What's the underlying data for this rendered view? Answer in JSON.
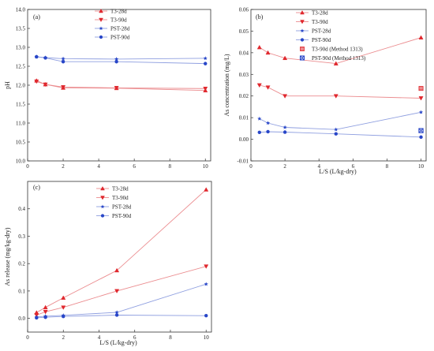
{
  "chart_data": [
    {
      "type": "line",
      "panel_label": "(a)",
      "xlabel": "",
      "ylabel": "pH",
      "xlim": [
        0,
        10.3
      ],
      "ylim": [
        10.0,
        14.0
      ],
      "yticks": [
        "10.0",
        "10.5",
        "11.0",
        "11.5",
        "12.0",
        "12.5",
        "13.0",
        "13.5",
        "14.0"
      ],
      "xticks": [
        "0",
        "2",
        "4",
        "6",
        "8",
        "10"
      ],
      "legend_position": "top-right",
      "series": [
        {
          "name": "T3-28d",
          "color": "#e0282e",
          "marker": "triangle",
          "x": [
            0.5,
            1,
            2,
            5,
            10
          ],
          "y": [
            12.12,
            12.02,
            11.93,
            11.92,
            11.86
          ]
        },
        {
          "name": "T3-90d",
          "color": "#e0282e",
          "marker": "triangle-down",
          "x": [
            0.5,
            1,
            2,
            5,
            10
          ],
          "y": [
            12.1,
            12.02,
            11.95,
            11.93,
            11.91
          ]
        },
        {
          "name": "PST-28d",
          "color": "#2846c8",
          "marker": "star",
          "x": [
            0.5,
            1,
            2,
            5,
            10
          ],
          "y": [
            12.75,
            12.73,
            12.7,
            12.69,
            12.71
          ]
        },
        {
          "name": "PST-90d",
          "color": "#2846c8",
          "marker": "circle",
          "x": [
            0.5,
            1,
            2,
            5,
            10
          ],
          "y": [
            12.75,
            12.72,
            12.62,
            12.62,
            12.57
          ]
        }
      ]
    },
    {
      "type": "line",
      "panel_label": "(b)",
      "xlabel": "L/S (L/kg-dry)",
      "ylabel": "As concentration (mg/L)",
      "xlim": [
        0,
        10.3
      ],
      "ylim": [
        -0.01,
        0.06
      ],
      "yticks": [
        "-0.01",
        "0.00",
        "0.01",
        "0.02",
        "0.03",
        "0.04",
        "0.05",
        "0.06"
      ],
      "xticks": [
        "0",
        "2",
        "4",
        "6",
        "8",
        "10"
      ],
      "legend_position": "top-right",
      "series": [
        {
          "name": "T3-28d",
          "color": "#e0282e",
          "marker": "triangle",
          "x": [
            0.5,
            1,
            2,
            5,
            10
          ],
          "y": [
            0.0425,
            0.04,
            0.0375,
            0.035,
            0.047
          ]
        },
        {
          "name": "T3-90d",
          "color": "#e0282e",
          "marker": "triangle-down",
          "x": [
            0.5,
            1,
            2,
            5,
            10
          ],
          "y": [
            0.025,
            0.024,
            0.02,
            0.02,
            0.019
          ]
        },
        {
          "name": "PST-28d",
          "color": "#2846c8",
          "marker": "star",
          "x": [
            0.5,
            1,
            2,
            5,
            10
          ],
          "y": [
            0.0095,
            0.0075,
            0.0055,
            0.0045,
            0.0125
          ]
        },
        {
          "name": "PST-90d",
          "color": "#2846c8",
          "marker": "circle",
          "x": [
            0.5,
            1,
            2,
            5,
            10
          ],
          "y": [
            0.0032,
            0.0035,
            0.0033,
            0.0025,
            0.001
          ]
        },
        {
          "name": "T3-90d (Method 1313)",
          "color": "#e0282e",
          "marker": "square-hatched",
          "line": false,
          "x": [
            10
          ],
          "y": [
            0.0235
          ]
        },
        {
          "name": "PST-90d (Method 1313)",
          "color": "#2846c8",
          "marker": "square-x",
          "line": false,
          "x": [
            10
          ],
          "y": [
            0.004
          ]
        }
      ]
    },
    {
      "type": "line",
      "panel_label": "(c)",
      "xlabel": "L/S (L/kg-dry)",
      "ylabel": "As release (mg/kg-dry)",
      "xlim": [
        0,
        10.3
      ],
      "ylim": [
        -0.05,
        0.5
      ],
      "yticks": [
        "0.0",
        "0.1",
        "0.2",
        "0.3",
        "0.4"
      ],
      "xticks": [
        "0",
        "2",
        "4",
        "6",
        "8",
        "10"
      ],
      "legend_position": "top-left",
      "series": [
        {
          "name": "T3-28d",
          "color": "#e0282e",
          "marker": "triangle",
          "x": [
            0.5,
            1,
            2,
            5,
            10
          ],
          "y": [
            0.021,
            0.04,
            0.075,
            0.175,
            0.47
          ]
        },
        {
          "name": "T3-90d",
          "color": "#e0282e",
          "marker": "triangle-down",
          "x": [
            0.5,
            1,
            2,
            5,
            10
          ],
          "y": [
            0.012,
            0.024,
            0.04,
            0.1,
            0.19
          ]
        },
        {
          "name": "PST-28d",
          "color": "#2846c8",
          "marker": "star",
          "x": [
            0.5,
            1,
            2,
            5,
            10
          ],
          "y": [
            0.005,
            0.008,
            0.011,
            0.022,
            0.125
          ]
        },
        {
          "name": "PST-90d",
          "color": "#2846c8",
          "marker": "circle",
          "x": [
            0.5,
            1,
            2,
            5,
            10
          ],
          "y": [
            0.002,
            0.004,
            0.007,
            0.012,
            0.01
          ]
        }
      ]
    }
  ]
}
